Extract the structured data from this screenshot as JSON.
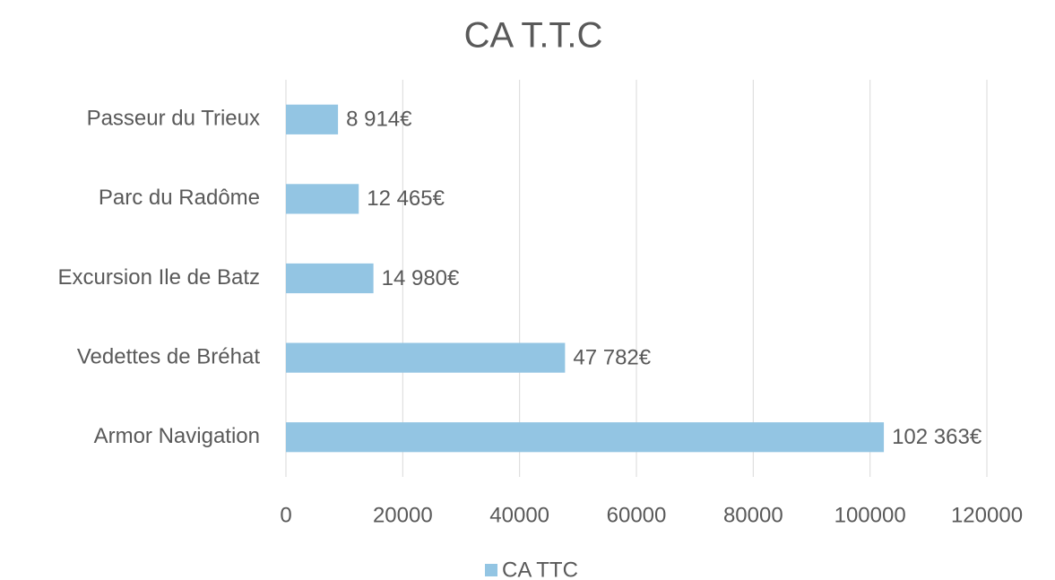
{
  "chart_data": {
    "type": "bar",
    "orientation": "horizontal",
    "title": "CA T.T.C",
    "categories": [
      "Passeur du Trieux",
      "Parc du Radôme",
      "Excursion Ile de Batz",
      "Vedettes de Bréhat",
      "Armor Navigation"
    ],
    "series": [
      {
        "name": "CA TTC",
        "color": "#93c5e3",
        "values": [
          8914,
          12465,
          14980,
          47782,
          102363
        ],
        "value_labels": [
          "8 914€",
          "12 465€",
          "14 980€",
          "47 782€",
          "102 363€"
        ]
      }
    ],
    "xlim": [
      0,
      120000
    ],
    "xticks": [
      0,
      20000,
      40000,
      60000,
      80000,
      100000,
      120000
    ],
    "grid": true,
    "legend": "bottom"
  }
}
